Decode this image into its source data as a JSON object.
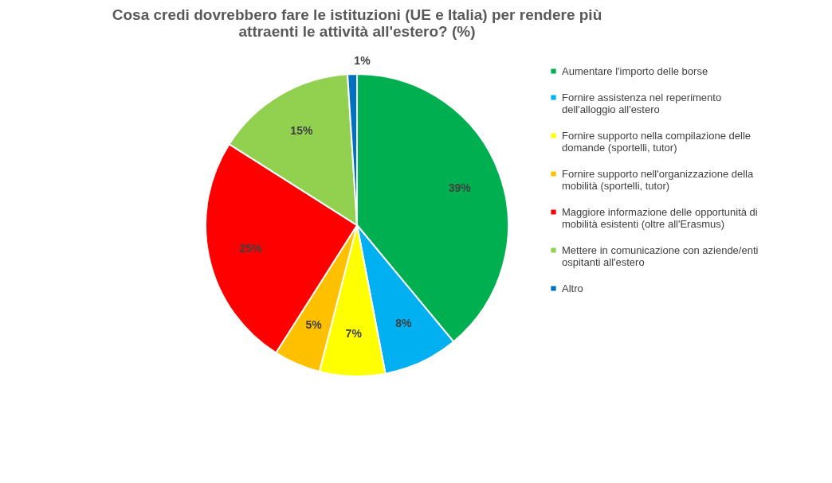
{
  "chart_data": {
    "type": "pie",
    "title": "Cosa credi dovrebbero fare le istituzioni (UE e Italia) per rendere più attraenti le attività all'estero? (%)",
    "categories": [
      "Aumentare l'importo delle borse",
      "Fornire assistenza nel reperimento dell'alloggio all'estero",
      "Fornire supporto nella compilazione delle domande (sportelli, tutor)",
      "Fornire supporto nell'organizzazione della mobilità (sportelli, tutor)",
      "Maggiore informazione delle opportunità di mobilità esistenti (oltre all'Erasmus)",
      "Mettere in comunicazione con aziende/enti ospitanti all'estero",
      "Altro"
    ],
    "values": [
      39,
      8,
      7,
      5,
      25,
      15,
      1
    ],
    "value_labels": [
      "39%",
      "8%",
      "7%",
      "5%",
      "25%",
      "15%",
      "1%"
    ],
    "colors": [
      "#00b050",
      "#00b0f0",
      "#ffff00",
      "#ffc000",
      "#ff0000",
      "#92d050",
      "#0070c0"
    ],
    "legend": "right"
  }
}
